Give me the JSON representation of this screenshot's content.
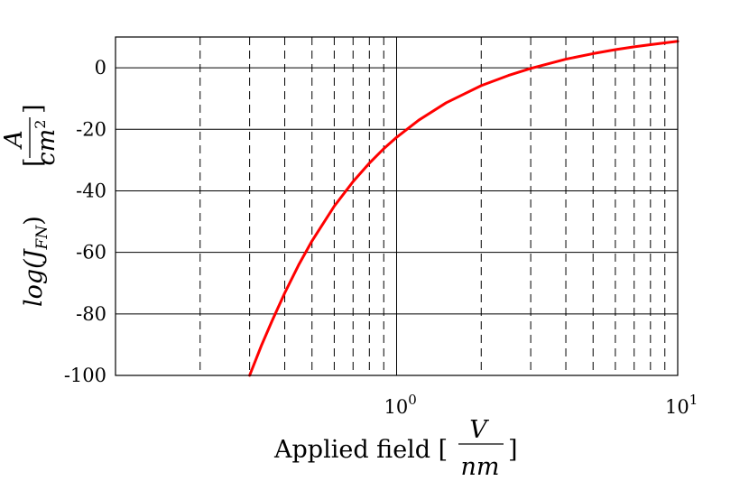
{
  "chart_data": {
    "type": "line",
    "x_scale": "log",
    "xlim": [
      0.1,
      10
    ],
    "ylim": [
      -100,
      10
    ],
    "x_ticks": [
      {
        "value": 1,
        "base": "10",
        "exp": "0"
      },
      {
        "value": 10,
        "base": "10",
        "exp": "1"
      }
    ],
    "y_ticks": [
      {
        "value": 0,
        "label": "0"
      },
      {
        "value": -20,
        "label": "-20"
      },
      {
        "value": -40,
        "label": "-40"
      },
      {
        "value": -60,
        "label": "-60"
      },
      {
        "value": -80,
        "label": "-80"
      },
      {
        "value": -100,
        "label": "-100"
      }
    ],
    "xlabel": {
      "text": "Applied field [",
      "frac_num": "V",
      "frac_den": "nm",
      "close": "]"
    },
    "ylabel": {
      "text": "log(J",
      "sub": "FN",
      "close_paren": ")",
      "bracket_open": "[",
      "frac_num": "A",
      "frac_den": "cm",
      "frac_den_sup": "2",
      "bracket_close": "]"
    },
    "grid": {
      "y_major": "solid",
      "x_minor": "dashed",
      "x_major": "solid"
    },
    "line_color": "#ff0000",
    "series": [
      {
        "x": [
          0.3,
          0.33,
          0.36,
          0.4,
          0.45,
          0.5,
          0.6,
          0.7,
          0.8,
          0.9,
          1.0,
          1.2,
          1.5,
          2,
          2.5,
          3,
          4,
          5,
          6,
          7,
          8,
          9,
          10
        ],
        "y": [
          -100,
          -90.4,
          -82.4,
          -73.2,
          -63.8,
          -56.3,
          -45.0,
          -37.0,
          -31.0,
          -26.3,
          -22.6,
          -17.0,
          -11.4,
          -5.8,
          -2.5,
          -0.2,
          2.8,
          4.6,
          5.9,
          6.8,
          7.5,
          8.1,
          8.6
        ]
      }
    ]
  }
}
